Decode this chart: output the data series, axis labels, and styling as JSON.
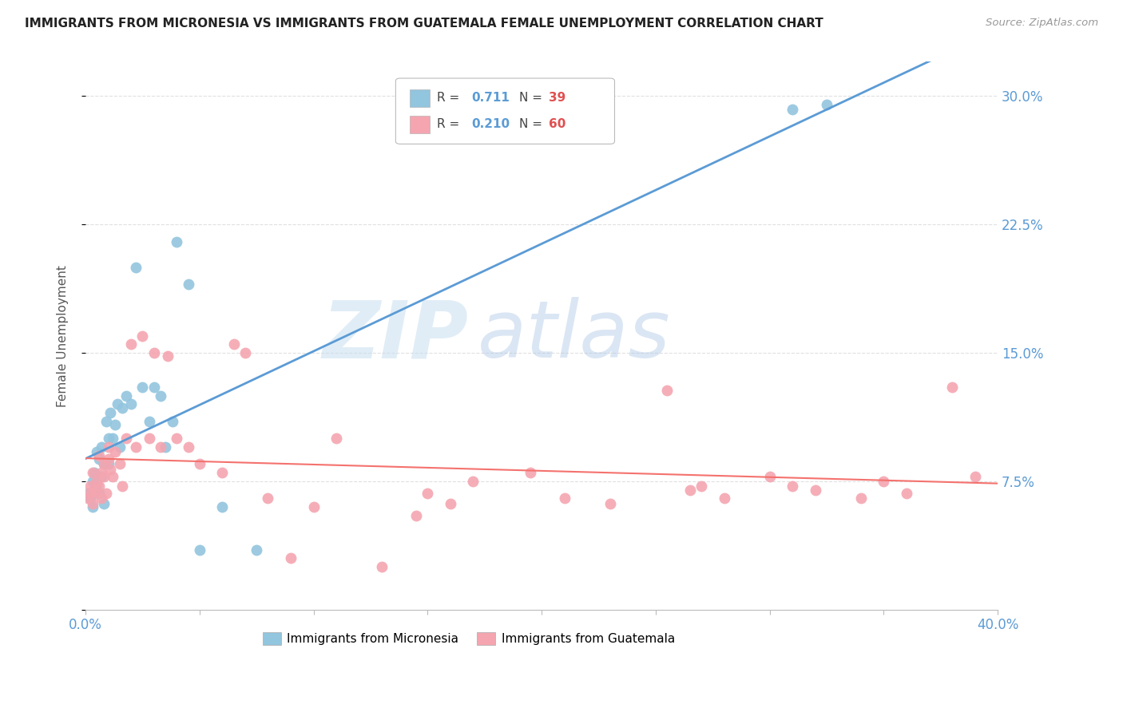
{
  "title": "IMMIGRANTS FROM MICRONESIA VS IMMIGRANTS FROM GUATEMALA FEMALE UNEMPLOYMENT CORRELATION CHART",
  "source": "Source: ZipAtlas.com",
  "ylabel": "Female Unemployment",
  "right_yticks": [
    0.0,
    0.075,
    0.15,
    0.225,
    0.3
  ],
  "right_yticklabels": [
    "",
    "7.5%",
    "15.0%",
    "22.5%",
    "30.0%"
  ],
  "watermark_zip": "ZIP",
  "watermark_atlas": "atlas",
  "micronesia_color": "#92c5de",
  "guatemala_color": "#f4a5b0",
  "micronesia_line_color": "#5b9bd5",
  "guatemala_line_color": "#f4726e",
  "micronesia_R": 0.711,
  "micronesia_N": 39,
  "guatemala_R": 0.21,
  "guatemala_N": 60,
  "micronesia_scatter_x": [
    0.001,
    0.002,
    0.003,
    0.003,
    0.004,
    0.004,
    0.005,
    0.005,
    0.006,
    0.006,
    0.007,
    0.007,
    0.008,
    0.008,
    0.009,
    0.01,
    0.01,
    0.011,
    0.012,
    0.013,
    0.014,
    0.015,
    0.016,
    0.018,
    0.02,
    0.022,
    0.025,
    0.028,
    0.03,
    0.033,
    0.035,
    0.038,
    0.04,
    0.045,
    0.05,
    0.06,
    0.075,
    0.31,
    0.325
  ],
  "micronesia_scatter_y": [
    0.068,
    0.065,
    0.06,
    0.075,
    0.07,
    0.08,
    0.073,
    0.092,
    0.088,
    0.068,
    0.078,
    0.095,
    0.085,
    0.062,
    0.11,
    0.085,
    0.1,
    0.115,
    0.1,
    0.108,
    0.12,
    0.095,
    0.118,
    0.125,
    0.12,
    0.2,
    0.13,
    0.11,
    0.13,
    0.125,
    0.095,
    0.11,
    0.215,
    0.19,
    0.035,
    0.06,
    0.035,
    0.292,
    0.295
  ],
  "guatemala_scatter_x": [
    0.001,
    0.002,
    0.002,
    0.003,
    0.003,
    0.004,
    0.005,
    0.005,
    0.006,
    0.006,
    0.007,
    0.007,
    0.008,
    0.008,
    0.009,
    0.01,
    0.01,
    0.011,
    0.012,
    0.013,
    0.015,
    0.016,
    0.018,
    0.02,
    0.022,
    0.025,
    0.028,
    0.03,
    0.033,
    0.036,
    0.04,
    0.045,
    0.05,
    0.06,
    0.065,
    0.07,
    0.08,
    0.09,
    0.1,
    0.11,
    0.13,
    0.145,
    0.15,
    0.16,
    0.17,
    0.195,
    0.21,
    0.23,
    0.255,
    0.265,
    0.27,
    0.28,
    0.3,
    0.31,
    0.32,
    0.34,
    0.35,
    0.36,
    0.38,
    0.39
  ],
  "guatemala_scatter_y": [
    0.065,
    0.068,
    0.072,
    0.062,
    0.08,
    0.07,
    0.075,
    0.068,
    0.072,
    0.09,
    0.08,
    0.065,
    0.085,
    0.078,
    0.068,
    0.088,
    0.095,
    0.082,
    0.078,
    0.092,
    0.085,
    0.072,
    0.1,
    0.155,
    0.095,
    0.16,
    0.1,
    0.15,
    0.095,
    0.148,
    0.1,
    0.095,
    0.085,
    0.08,
    0.155,
    0.15,
    0.065,
    0.03,
    0.06,
    0.1,
    0.025,
    0.055,
    0.068,
    0.062,
    0.075,
    0.08,
    0.065,
    0.062,
    0.128,
    0.07,
    0.072,
    0.065,
    0.078,
    0.072,
    0.07,
    0.065,
    0.075,
    0.068,
    0.13,
    0.078
  ],
  "xlim": [
    0.0,
    0.4
  ],
  "ylim": [
    0.0,
    0.32
  ],
  "background_color": "#ffffff",
  "grid_color": "#e0e0e0",
  "legend_label_micronesia": "Immigrants from Micronesia",
  "legend_label_guatemala": "Immigrants from Guatemala"
}
